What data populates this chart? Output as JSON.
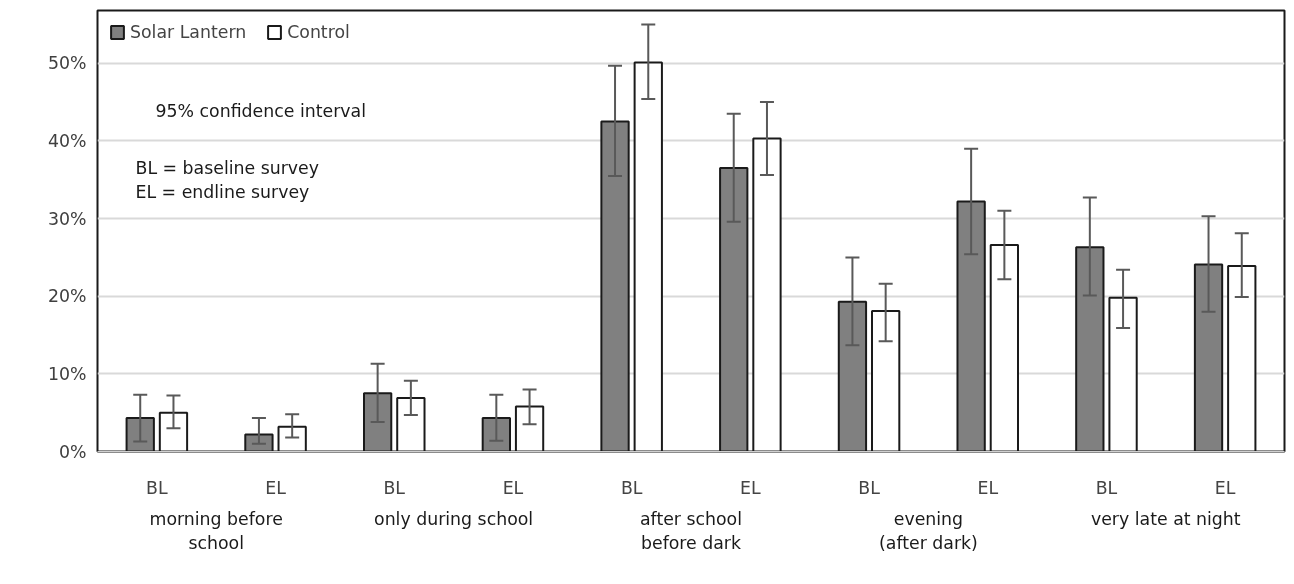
{
  "chart_data": {
    "type": "bar",
    "categories": [
      "BL",
      "EL",
      "BL",
      "EL",
      "BL",
      "EL",
      "BL",
      "EL",
      "BL",
      "EL"
    ],
    "series": [
      {
        "name": "Solar Lantern",
        "color": "#808080",
        "values": [
          4.3,
          2.2,
          7.5,
          4.3,
          42.5,
          36.5,
          19.3,
          32.2,
          26.3,
          24.1
        ],
        "errors": [
          [
            1.3,
            7.3
          ],
          [
            1.0,
            4.3
          ],
          [
            3.8,
            11.3
          ],
          [
            1.4,
            7.3
          ],
          [
            35.5,
            49.7
          ],
          [
            29.6,
            43.5
          ],
          [
            13.7,
            25.0
          ],
          [
            25.4,
            39.0
          ],
          [
            20.1,
            32.7
          ],
          [
            18.0,
            30.3
          ]
        ]
      },
      {
        "name": "Control",
        "color": "#ffffff",
        "values": [
          5.0,
          3.2,
          6.9,
          5.8,
          50.1,
          40.3,
          18.1,
          26.6,
          19.8,
          23.9
        ],
        "errors": [
          [
            3.0,
            7.2
          ],
          [
            1.8,
            4.8
          ],
          [
            4.7,
            9.1
          ],
          [
            3.5,
            8.0
          ],
          [
            45.4,
            55.0
          ],
          [
            35.6,
            45.0
          ],
          [
            14.2,
            21.6
          ],
          [
            22.2,
            31.0
          ],
          [
            15.9,
            23.4
          ],
          [
            19.9,
            28.1
          ]
        ]
      }
    ],
    "ylim": [
      0,
      56.8
    ],
    "yticks": [
      {
        "value": 0,
        "label": "0%"
      },
      {
        "value": 10,
        "label": "10%"
      },
      {
        "value": 20,
        "label": "20%"
      },
      {
        "value": 30,
        "label": "30%"
      },
      {
        "value": 40,
        "label": "40%"
      },
      {
        "value": 50,
        "label": "50%"
      }
    ],
    "grid": "y",
    "legend": "top left",
    "annotations": [
      "95% confidence interval",
      "BL = baseline survey\nEL = endline survey",
      "morning before\nschool",
      "only during school",
      "after school\nbefore dark",
      "evening\n(after dark)",
      "very late at night"
    ]
  }
}
